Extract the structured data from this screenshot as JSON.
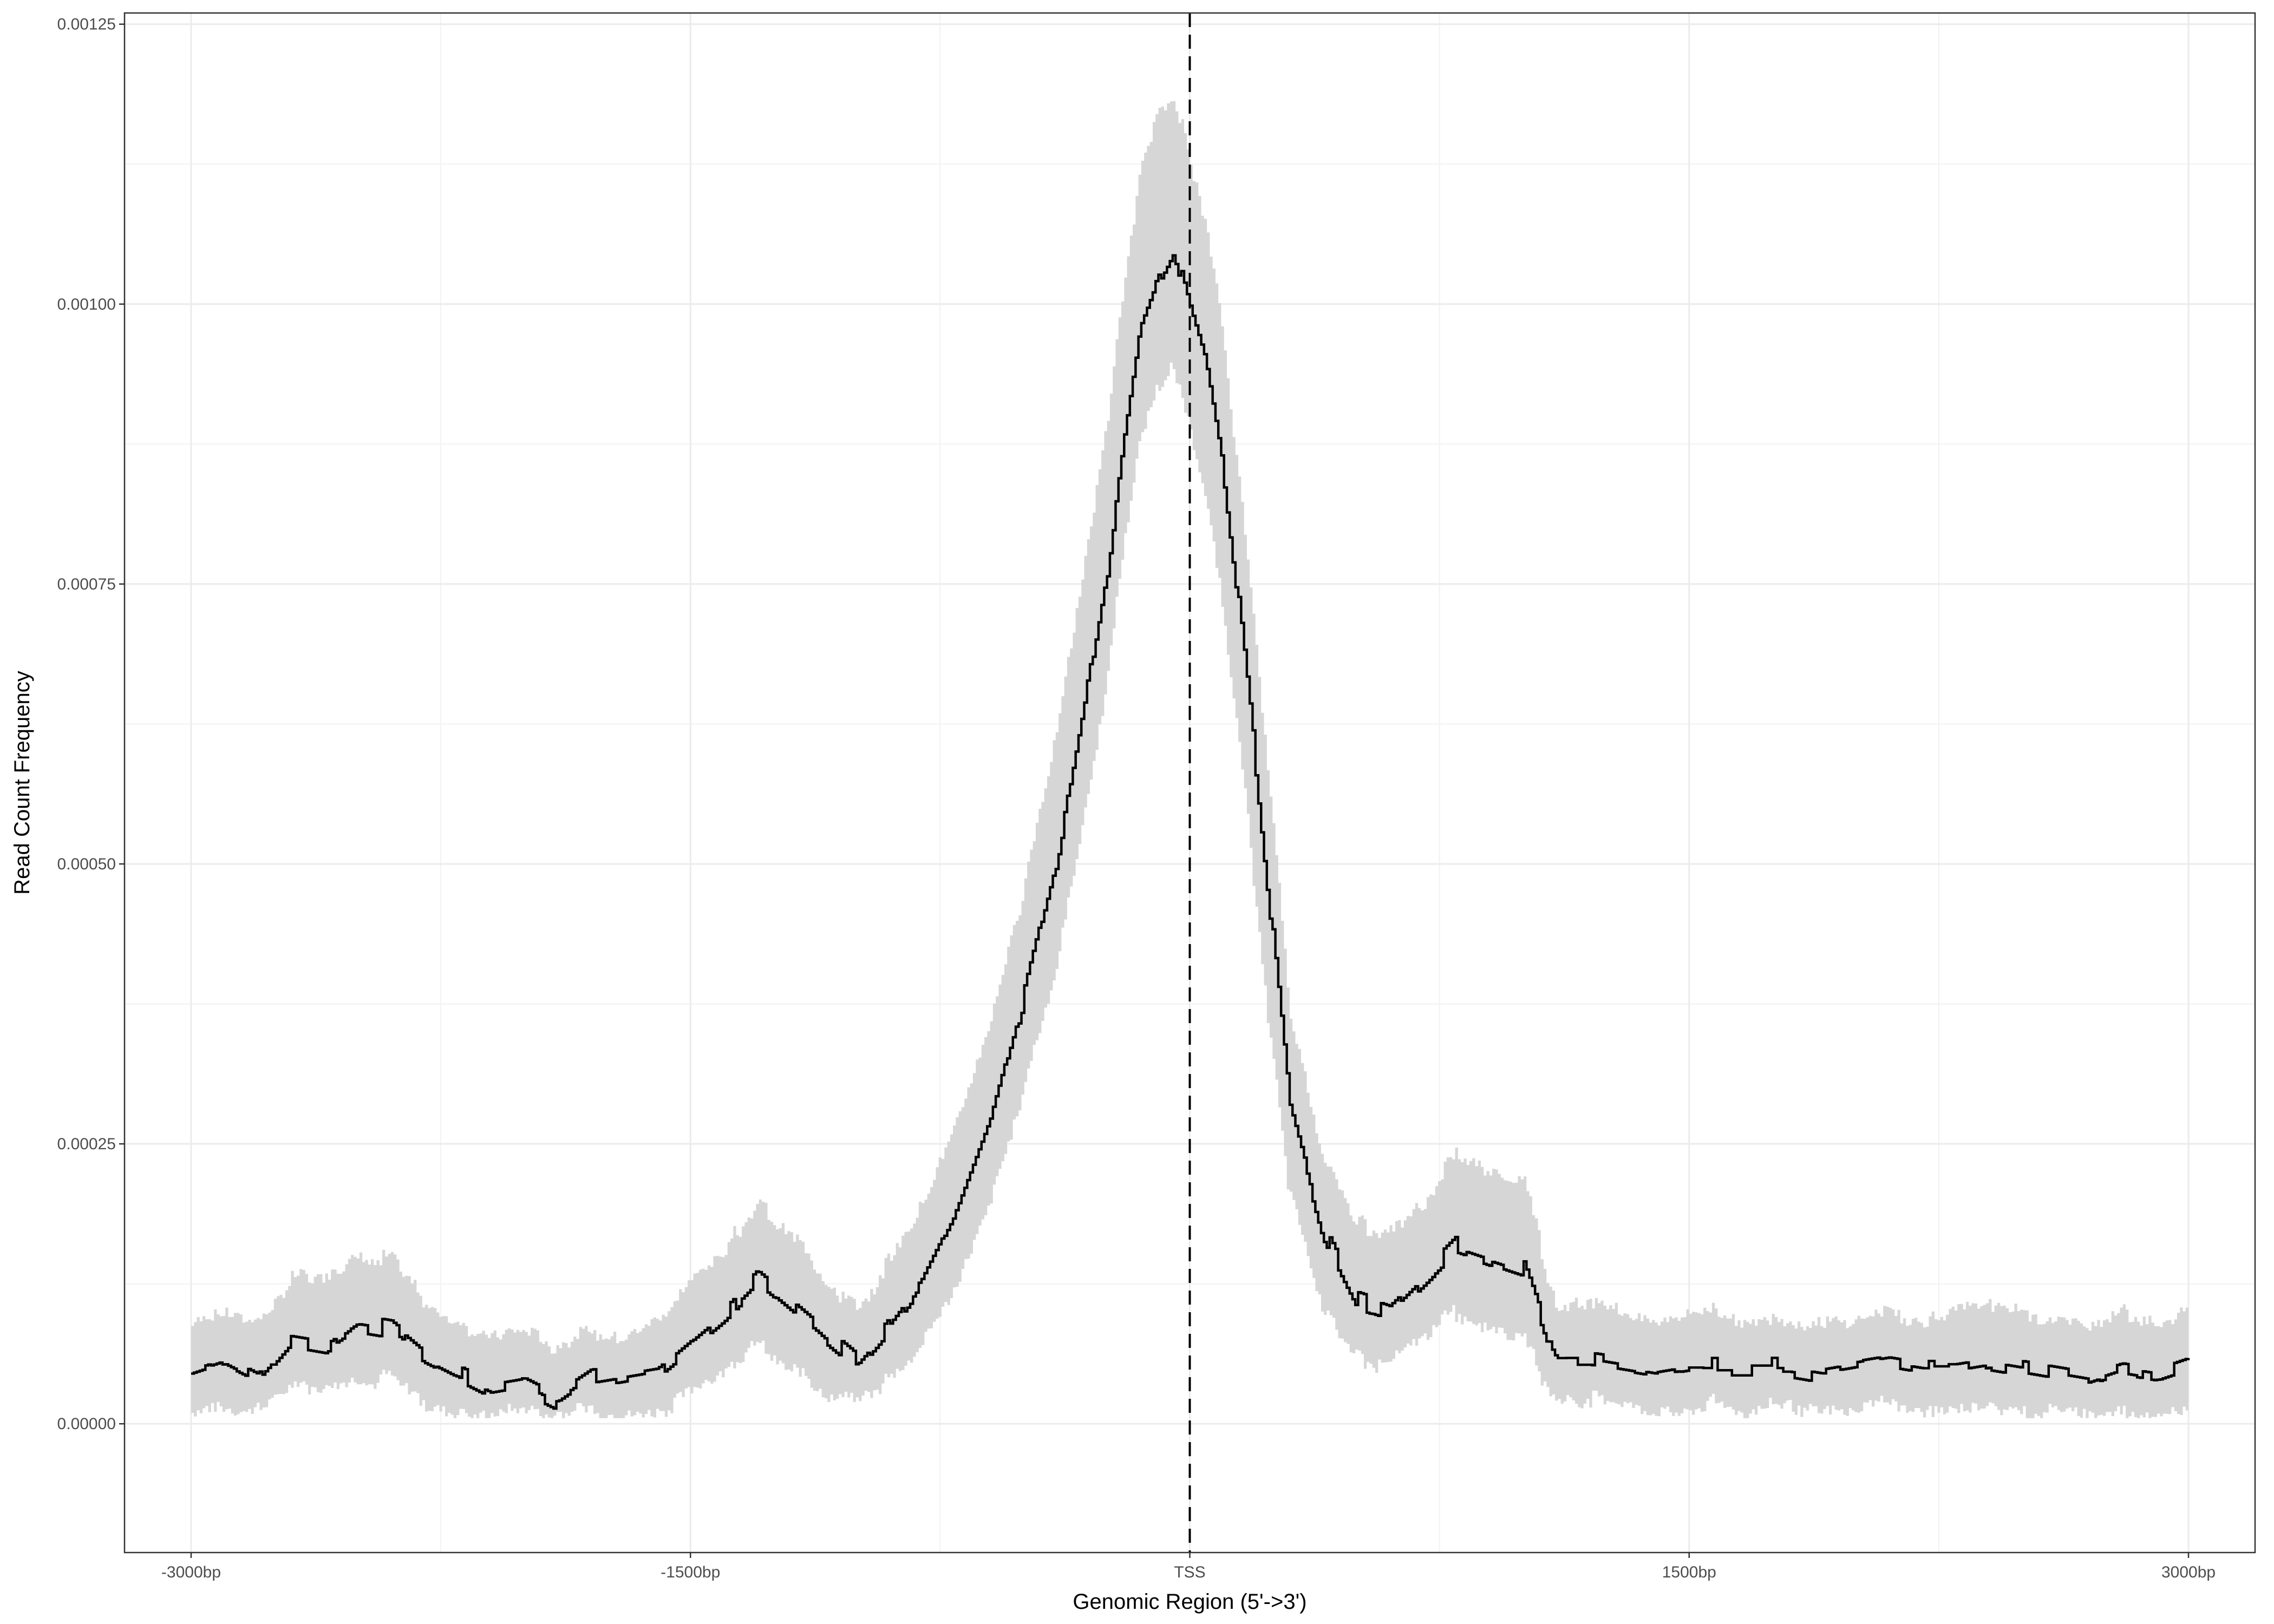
{
  "chart_data": {
    "type": "area",
    "title": "",
    "xlabel": "Genomic Region (5'->3')",
    "ylabel": "Read Count Frequency",
    "xlim": [
      -3200,
      3200
    ],
    "ylim": [
      -0.000115,
      0.00126
    ],
    "x_ticks": [
      {
        "value": -3000,
        "label": "-3000bp"
      },
      {
        "value": -1500,
        "label": "-1500bp"
      },
      {
        "value": 0,
        "label": "TSS"
      },
      {
        "value": 1500,
        "label": "1500bp"
      },
      {
        "value": 3000,
        "label": "3000bp"
      }
    ],
    "y_ticks": [
      {
        "value": 0,
        "label": "0.00000"
      },
      {
        "value": 0.00025,
        "label": "0.00025"
      },
      {
        "value": 0.0005,
        "label": "0.00050"
      },
      {
        "value": 0.00075,
        "label": "0.00075"
      },
      {
        "value": 0.001,
        "label": "0.00100"
      },
      {
        "value": 0.00125,
        "label": "0.00125"
      }
    ],
    "x_minor_ticks": [
      -2250,
      -750,
      750,
      2250
    ],
    "y_minor_ticks": [
      0.000125,
      0.000375,
      0.000625,
      0.000875,
      0.001125
    ],
    "grid": true,
    "vline": {
      "x": 0,
      "style": "dashed"
    },
    "series": [
      {
        "style": "step-line-with-confidence-ribbon",
        "color": "#000000",
        "ribbon_color": "#d6d6d6",
        "x": [
          -3000,
          -2900,
          -2800,
          -2700,
          -2600,
          -2500,
          -2400,
          -2300,
          -2200,
          -2100,
          -2000,
          -1900,
          -1800,
          -1700,
          -1600,
          -1500,
          -1400,
          -1300,
          -1200,
          -1100,
          -1000,
          -900,
          -800,
          -700,
          -600,
          -500,
          -400,
          -300,
          -250,
          -200,
          -150,
          -100,
          -50,
          0,
          50,
          100,
          150,
          200,
          250,
          300,
          400,
          500,
          600,
          700,
          800,
          900,
          1000,
          1100,
          1200,
          1300,
          1400,
          1500,
          1600,
          1700,
          1800,
          1900,
          2000,
          2100,
          2200,
          2300,
          2400,
          2500,
          2600,
          2700,
          2800,
          2900,
          3000
        ],
        "mean": [
          4.5e-05,
          5.5e-05,
          4e-05,
          7.5e-05,
          7e-05,
          9e-05,
          8.5e-05,
          6e-05,
          4.5e-05,
          3e-05,
          3.5e-05,
          2e-05,
          4e-05,
          4.5e-05,
          5e-05,
          7.5e-05,
          0.0001,
          0.00013,
          0.000105,
          8e-05,
          5.5e-05,
          9e-05,
          0.00013,
          0.00019,
          0.00027,
          0.00038,
          0.0005,
          0.00067,
          0.00076,
          0.00088,
          0.00098,
          0.00102,
          0.00105,
          0.00099,
          0.00094,
          0.00085,
          0.00072,
          0.00058,
          0.00043,
          0.00028,
          0.00017,
          0.00011,
          0.0001,
          0.00013,
          0.00016,
          0.00015,
          0.00014,
          5.5e-05,
          5.5e-05,
          5e-05,
          4.5e-05,
          5e-05,
          5e-05,
          5e-05,
          5e-05,
          4.5e-05,
          5e-05,
          5.5e-05,
          5e-05,
          5e-05,
          5.5e-05,
          5e-05,
          4.5e-05,
          4e-05,
          5e-05,
          4.5e-05,
          5.5e-05
        ],
        "lower": [
          1e-05,
          1.5e-05,
          1e-05,
          3.5e-05,
          3.5e-05,
          4e-05,
          4e-05,
          2e-05,
          1e-05,
          1e-05,
          1e-05,
          1e-05,
          1e-05,
          1e-05,
          1e-05,
          3e-05,
          5e-05,
          7e-05,
          5e-05,
          3e-05,
          2e-05,
          4e-05,
          7e-05,
          0.00012,
          0.00019,
          0.00029,
          0.0004,
          0.00056,
          0.00065,
          0.00077,
          0.00087,
          0.00092,
          0.00095,
          0.00089,
          0.00083,
          0.00074,
          0.00062,
          0.00048,
          0.00034,
          0.00021,
          0.00011,
          6e-05,
          5e-05,
          8e-05,
          0.0001,
          9e-05,
          8e-05,
          2e-05,
          2e-05,
          2e-05,
          1e-05,
          1e-05,
          2e-05,
          1e-05,
          2e-05,
          1e-05,
          1e-05,
          2e-05,
          1e-05,
          1e-05,
          2e-05,
          1e-05,
          1e-05,
          1e-05,
          1e-05,
          1e-05,
          1e-05
        ],
        "upper": [
          9e-05,
          0.0001,
          9e-05,
          0.00013,
          0.000135,
          0.00015,
          0.000145,
          0.00011,
          9e-05,
          8e-05,
          8e-05,
          7e-05,
          8e-05,
          8e-05,
          9.5e-05,
          0.00013,
          0.00016,
          0.000195,
          0.00017,
          0.00013,
          0.0001,
          0.00015,
          0.0002,
          0.00027,
          0.00036,
          0.00048,
          0.00062,
          0.0008,
          0.0009,
          0.00102,
          0.00112,
          0.00117,
          0.00119,
          0.00112,
          0.00106,
          0.00097,
          0.00083,
          0.00069,
          0.00053,
          0.00036,
          0.00024,
          0.00018,
          0.00017,
          0.0002,
          0.00024,
          0.00023,
          0.00022,
          0.0001,
          0.00011,
          0.0001,
          9e-05,
          0.0001,
          0.0001,
          9e-05,
          9.5e-05,
          9e-05,
          9e-05,
          0.0001,
          9e-05,
          0.0001,
          0.00011,
          0.0001,
          9e-05,
          9e-05,
          0.0001,
          9e-05,
          0.0001
        ]
      }
    ]
  }
}
